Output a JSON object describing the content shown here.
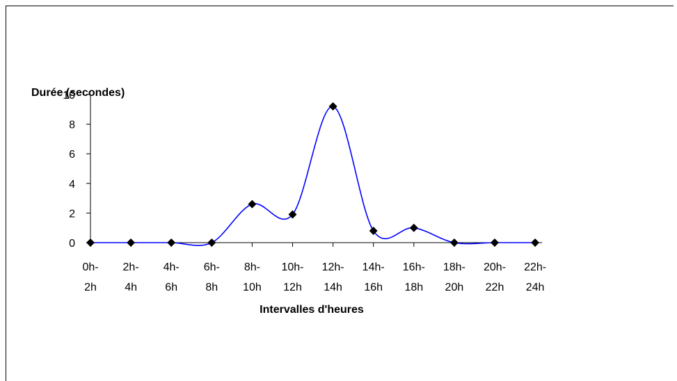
{
  "chart_data": {
    "type": "line",
    "title": "",
    "xlabel": "Intervalles d'heures",
    "ylabel": "Durée (secondes)",
    "categories": [
      [
        "0h-",
        "2h"
      ],
      [
        "2h-",
        "4h"
      ],
      [
        "4h-",
        "6h"
      ],
      [
        "6h-",
        "8h"
      ],
      [
        "8h-",
        "10h"
      ],
      [
        "10h-",
        "12h"
      ],
      [
        "12h-",
        "14h"
      ],
      [
        "14h-",
        "16h"
      ],
      [
        "16h-",
        "18h"
      ],
      [
        "18h-",
        "20h"
      ],
      [
        "20h-",
        "22h"
      ],
      [
        "22h-",
        "24h"
      ]
    ],
    "series": [
      {
        "values": [
          0,
          0,
          0,
          0,
          2.6,
          1.9,
          9.2,
          0.8,
          1.0,
          0,
          0,
          0
        ],
        "color": "#0000ff",
        "marker": "diamond",
        "marker_color": "#000000",
        "smoothed": true
      }
    ],
    "ylim": [
      0,
      10
    ],
    "yticks": [
      0,
      2,
      4,
      6,
      8,
      10
    ],
    "grid": false,
    "legend": "none"
  }
}
